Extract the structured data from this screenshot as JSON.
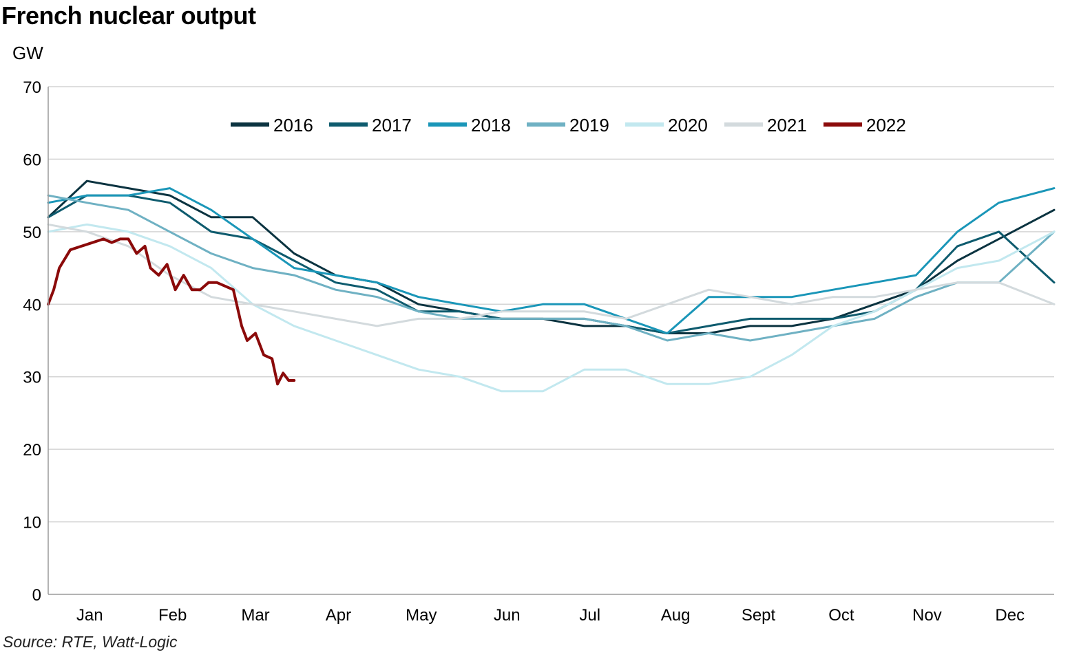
{
  "chart_data": {
    "type": "line",
    "title": "French nuclear output",
    "ylabel": "GW",
    "source": "Source: RTE, Watt-Logic",
    "ylim": [
      0,
      70
    ],
    "yticks": [
      0,
      10,
      20,
      30,
      40,
      50,
      60,
      70
    ],
    "xlim": [
      1,
      365
    ],
    "months": [
      {
        "label": "Jan",
        "day": 16
      },
      {
        "label": "Feb",
        "day": 46
      },
      {
        "label": "Mar",
        "day": 76
      },
      {
        "label": "Apr",
        "day": 106
      },
      {
        "label": "May",
        "day": 136
      },
      {
        "label": "Jun",
        "day": 167
      },
      {
        "label": "Jul",
        "day": 197
      },
      {
        "label": "Aug",
        "day": 228
      },
      {
        "label": "Sept",
        "day": 258
      },
      {
        "label": "Oct",
        "day": 288
      },
      {
        "label": "Nov",
        "day": 319
      },
      {
        "label": "Dec",
        "day": 349
      }
    ],
    "grid": true,
    "legend_position": "top-center",
    "series": [
      {
        "name": "2016",
        "color": "#0b3340",
        "width": 3,
        "x": [
          1,
          15,
          30,
          45,
          60,
          75,
          90,
          105,
          120,
          135,
          150,
          165,
          180,
          195,
          210,
          225,
          240,
          255,
          270,
          285,
          300,
          315,
          330,
          345,
          365
        ],
        "y": [
          52,
          57,
          56,
          55,
          52,
          52,
          47,
          44,
          43,
          40,
          39,
          38,
          38,
          37,
          37,
          36,
          36,
          37,
          37,
          38,
          40,
          42,
          46,
          49,
          53
        ]
      },
      {
        "name": "2017",
        "color": "#0e5b6e",
        "width": 3,
        "x": [
          1,
          15,
          30,
          45,
          60,
          75,
          90,
          105,
          120,
          135,
          150,
          165,
          180,
          195,
          210,
          225,
          240,
          255,
          270,
          285,
          300,
          315,
          330,
          345,
          365
        ],
        "y": [
          52,
          55,
          55,
          54,
          50,
          49,
          46,
          43,
          42,
          39,
          39,
          38,
          38,
          38,
          37,
          36,
          37,
          38,
          38,
          38,
          39,
          42,
          48,
          50,
          43
        ]
      },
      {
        "name": "2018",
        "color": "#1a96b8",
        "width": 3,
        "x": [
          1,
          15,
          30,
          45,
          60,
          75,
          90,
          105,
          120,
          135,
          150,
          165,
          180,
          195,
          210,
          225,
          240,
          255,
          270,
          285,
          300,
          315,
          330,
          345,
          365
        ],
        "y": [
          54,
          55,
          55,
          56,
          53,
          49,
          45,
          44,
          43,
          41,
          40,
          39,
          40,
          40,
          38,
          36,
          41,
          41,
          41,
          42,
          43,
          44,
          50,
          54,
          56
        ]
      },
      {
        "name": "2019",
        "color": "#6fb1c3",
        "width": 3,
        "x": [
          1,
          15,
          30,
          45,
          60,
          75,
          90,
          105,
          120,
          135,
          150,
          165,
          180,
          195,
          210,
          225,
          240,
          255,
          270,
          285,
          300,
          315,
          330,
          345,
          365
        ],
        "y": [
          55,
          54,
          53,
          50,
          47,
          45,
          44,
          42,
          41,
          39,
          38,
          38,
          38,
          38,
          37,
          35,
          36,
          35,
          36,
          37,
          38,
          41,
          43,
          43,
          50
        ]
      },
      {
        "name": "2020",
        "color": "#c2e8ef",
        "width": 3,
        "x": [
          1,
          15,
          30,
          45,
          60,
          75,
          90,
          105,
          120,
          135,
          150,
          165,
          180,
          195,
          210,
          225,
          240,
          255,
          270,
          285,
          300,
          315,
          330,
          345,
          365
        ],
        "y": [
          50,
          51,
          50,
          48,
          45,
          40,
          37,
          35,
          33,
          31,
          30,
          28,
          28,
          31,
          31,
          29,
          29,
          30,
          33,
          37,
          39,
          42,
          45,
          46,
          50
        ]
      },
      {
        "name": "2021",
        "color": "#d3dadd",
        "width": 3,
        "x": [
          1,
          15,
          30,
          45,
          60,
          75,
          90,
          105,
          120,
          135,
          150,
          165,
          180,
          195,
          210,
          225,
          240,
          255,
          270,
          285,
          300,
          315,
          330,
          345,
          365
        ],
        "y": [
          51,
          50,
          48,
          44,
          41,
          40,
          39,
          38,
          37,
          38,
          38,
          39,
          39,
          39,
          38,
          40,
          42,
          41,
          40,
          41,
          41,
          42,
          43,
          43,
          40
        ]
      },
      {
        "name": "2022",
        "color": "#8b0a0a",
        "width": 4,
        "x": [
          1,
          3,
          5,
          9,
          13,
          17,
          21,
          24,
          27,
          30,
          33,
          36,
          38,
          41,
          44,
          47,
          50,
          53,
          56,
          59,
          62,
          65,
          68,
          71,
          73,
          76,
          79,
          82,
          84,
          86,
          88,
          90
        ],
        "y": [
          40,
          42,
          45,
          47.5,
          48,
          48.5,
          49,
          48.5,
          49,
          49,
          47,
          48,
          45,
          44,
          45.5,
          42,
          44,
          42,
          42,
          43,
          43,
          42.5,
          42,
          37,
          35,
          36,
          33,
          32.5,
          29,
          30.5,
          29.5,
          29.5
        ]
      }
    ]
  }
}
